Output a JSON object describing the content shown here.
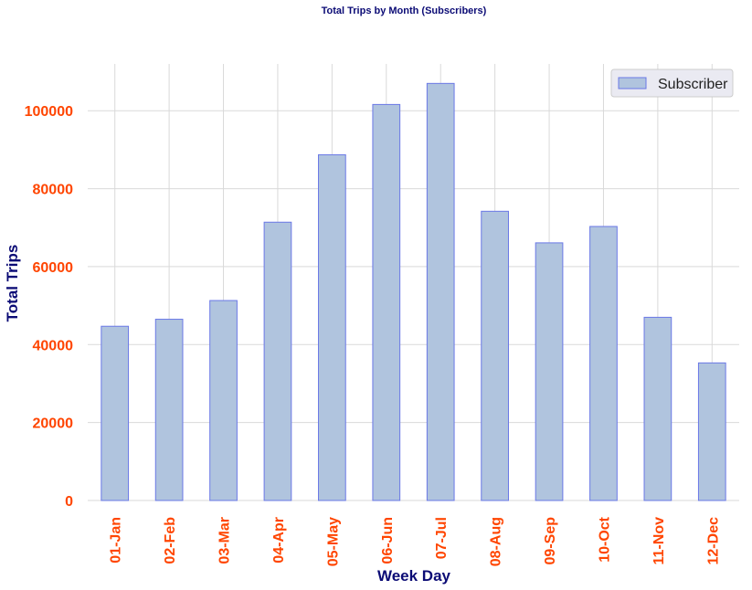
{
  "chart_data": {
    "type": "bar",
    "title": "Total Trips by Month (Subscribers)",
    "xlabel": "Week Day",
    "ylabel": "Total Trips",
    "categories": [
      "01-Jan",
      "02-Feb",
      "03-Mar",
      "04-Apr",
      "05-May",
      "06-Jun",
      "07-Jul",
      "08-Aug",
      "09-Sep",
      "10-Oct",
      "11-Nov",
      "12-Dec"
    ],
    "series": [
      {
        "name": "Subscriber",
        "values": [
          44700,
          46500,
          51300,
          71400,
          88700,
          101600,
          107000,
          74200,
          66100,
          70300,
          47000,
          35300
        ]
      }
    ],
    "ylim": [
      0,
      112000
    ],
    "yticks": [
      0,
      20000,
      40000,
      60000,
      80000,
      100000
    ],
    "grid": true,
    "legend_position": "top-right",
    "colors": {
      "bar_fill": "#b0c4de",
      "bar_edge": "#6a78e6",
      "tick_label": "#ff4500",
      "axis_label": "#0b0b75",
      "title": "#0b0b75",
      "grid": "#d9d9d9",
      "legend_bg": "#eaeaf2"
    }
  }
}
